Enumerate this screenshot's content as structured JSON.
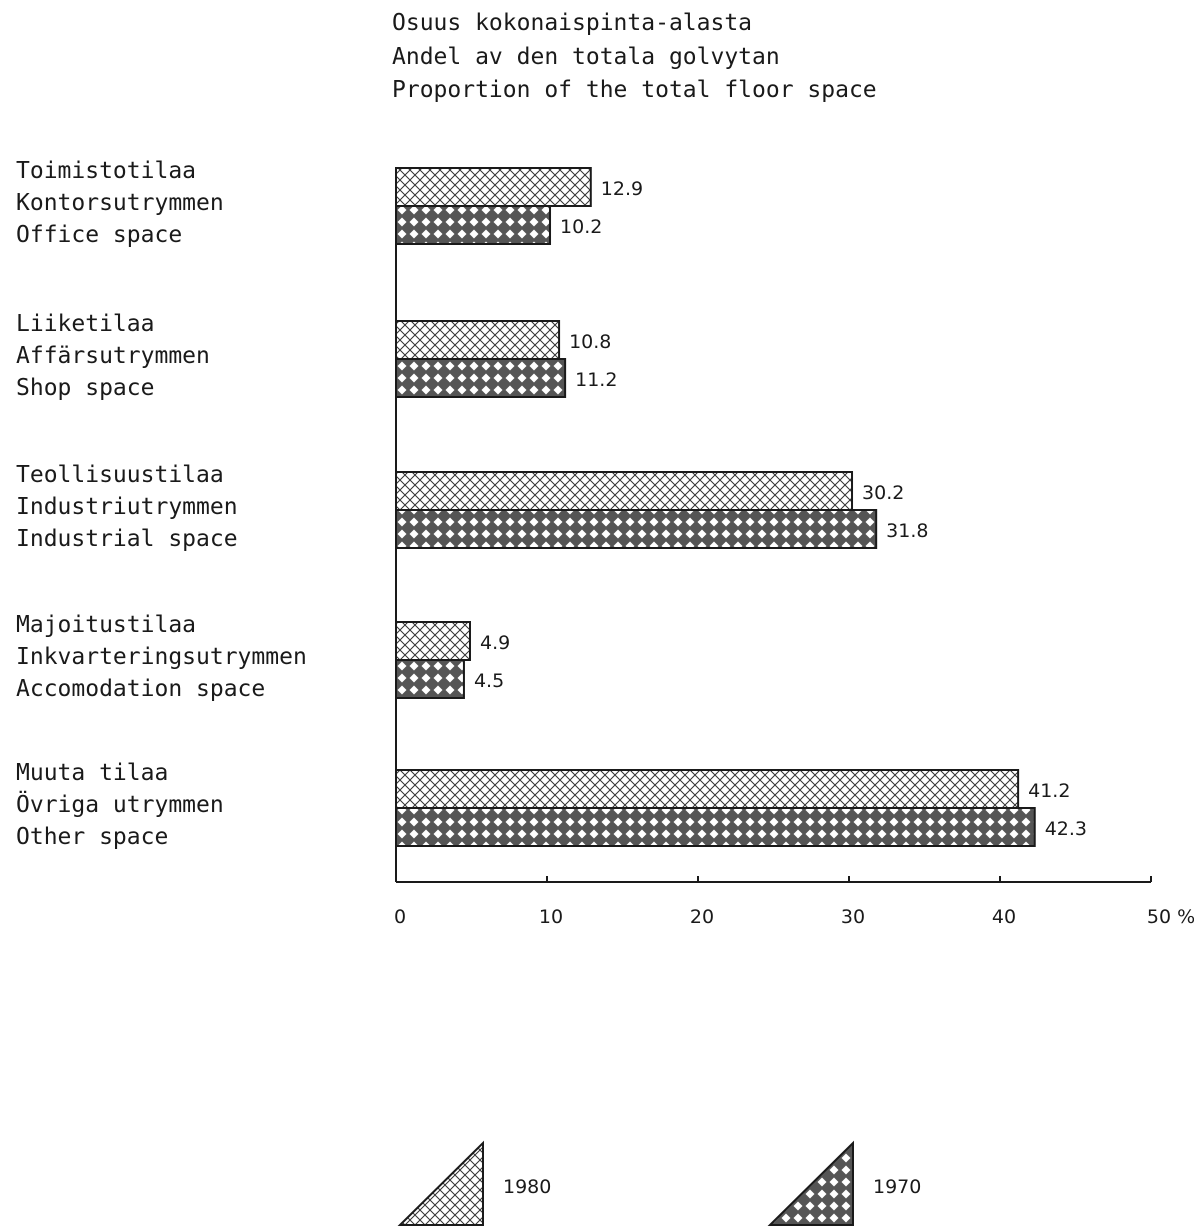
{
  "chart_data": {
    "type": "bar",
    "orientation": "horizontal",
    "title": [
      "Osuus kokonaispinta-alasta",
      "Andel av den totala golvytan",
      "Proportion of the total floor space"
    ],
    "categories": [
      [
        "Toimistotilaa",
        "Kontorsutrymmen",
        "Office space"
      ],
      [
        "Liiketilaa",
        "Affärsutrymmen",
        "Shop space"
      ],
      [
        "Teollisuustilaa",
        "Industriutrymmen",
        "Industrial space"
      ],
      [
        "Majoitustilaa",
        "Inkvarteringsutrymmen",
        "Accomodation space"
      ],
      [
        "Muuta tilaa",
        "Övriga utrymmen",
        "Other space"
      ]
    ],
    "series": [
      {
        "name": "1980",
        "pattern": "crosshatch",
        "values": [
          12.9,
          10.8,
          30.2,
          4.9,
          41.2
        ],
        "labels": [
          "12.9",
          "10.8",
          "30.2",
          "4.9",
          "41.2"
        ]
      },
      {
        "name": "1970",
        "pattern": "dark-dotted",
        "values": [
          10.2,
          11.2,
          31.8,
          4.5,
          42.3
        ],
        "labels": [
          "10.2",
          "11.2",
          "31.8",
          "4.5",
          "42.3"
        ]
      }
    ],
    "xlim": [
      0,
      50
    ],
    "xticks": [
      0,
      10,
      20,
      30,
      40,
      50
    ],
    "xtick_labels": [
      "0",
      "10",
      "20",
      "30",
      "40",
      "50 %"
    ],
    "grid": false,
    "legend_position": "bottom"
  }
}
